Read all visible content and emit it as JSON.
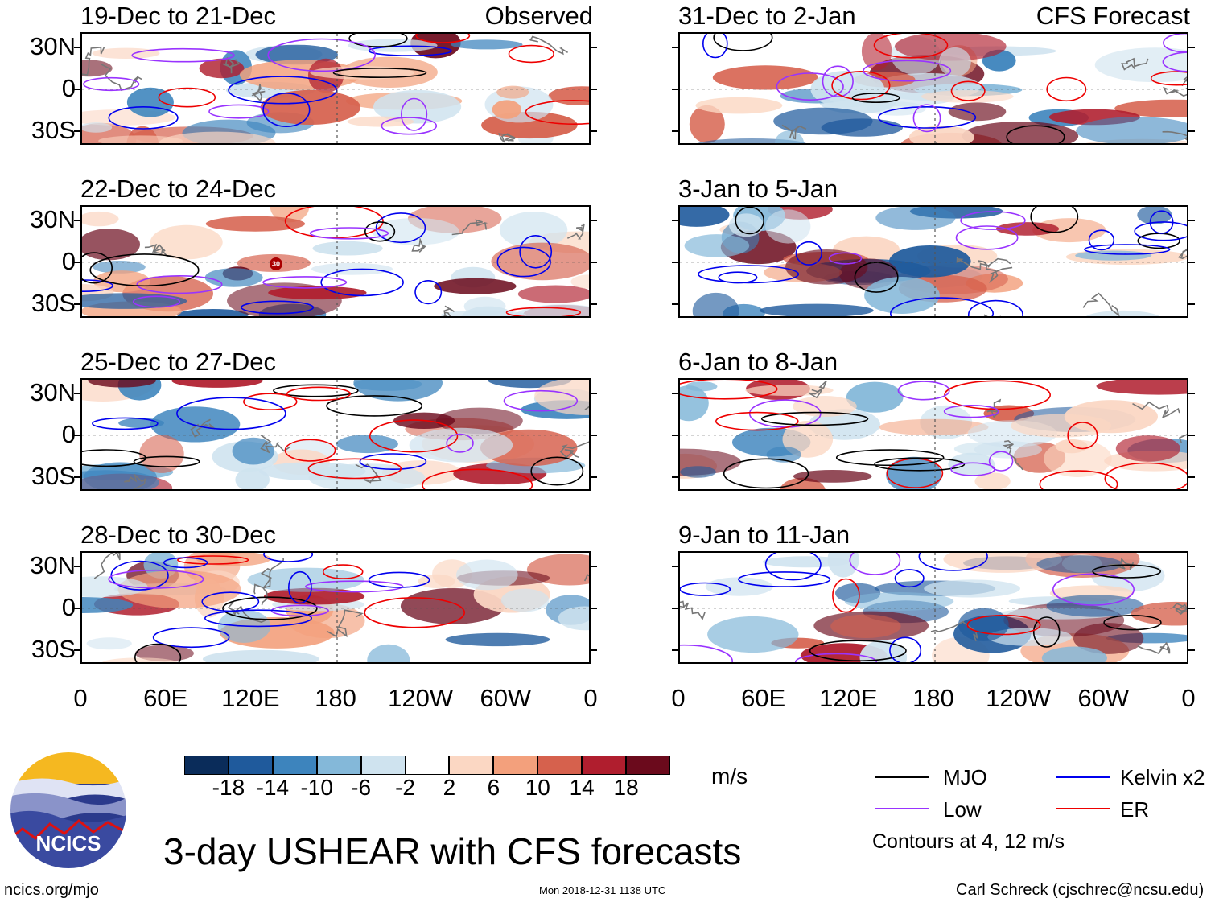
{
  "panels": {
    "left": [
      {
        "title": "19-Dec to 21-Dec",
        "tag": "Observed"
      },
      {
        "title": "22-Dec to 24-Dec",
        "tag": ""
      },
      {
        "title": "25-Dec to 27-Dec",
        "tag": ""
      },
      {
        "title": "28-Dec to 30-Dec",
        "tag": ""
      }
    ],
    "right": [
      {
        "title": "31-Dec to 2-Jan",
        "tag": "CFS Forecast"
      },
      {
        "title": "3-Jan to 5-Jan",
        "tag": ""
      },
      {
        "title": "6-Jan to 8-Jan",
        "tag": ""
      },
      {
        "title": "9-Jan to 11-Jan",
        "tag": ""
      }
    ]
  },
  "storm_markers": [
    {
      "text": "30"
    }
  ],
  "axes": {
    "lat_labels": [
      "30N",
      "0",
      "30S"
    ],
    "lon_labels": [
      "0",
      "60E",
      "120E",
      "180",
      "120W",
      "60W",
      "0"
    ]
  },
  "colorbar": {
    "labels": [
      "-18",
      "-14",
      "-10",
      "-6",
      "-2",
      "2",
      "6",
      "10",
      "14",
      "18"
    ],
    "units": "m/s",
    "colors": [
      "#0a2c5a",
      "#1f5a9c",
      "#3d84bd",
      "#84b8d9",
      "#cfe3ef",
      "#ffffff",
      "#fbd7c3",
      "#f3a07c",
      "#d6614d",
      "#b01e2e",
      "#6b0a1c"
    ]
  },
  "legend": {
    "items": [
      {
        "label": "MJO",
        "color": "#000000"
      },
      {
        "label": "Kelvin x2",
        "color": "#0000ee"
      },
      {
        "label": "Low",
        "color": "#9933ff"
      },
      {
        "label": "ER",
        "color": "#ee0000"
      }
    ],
    "note": "Contours at 4, 12 m/s"
  },
  "logo": {
    "text": "NCICS"
  },
  "title": "3-day USHEAR with CFS forecasts",
  "footer": {
    "url": "ncics.org/mjo",
    "timestamp": "Mon 2018-12-31 1138 UTC",
    "credit": "Carl Schreck (cjschrec@ncsu.edu)"
  }
}
